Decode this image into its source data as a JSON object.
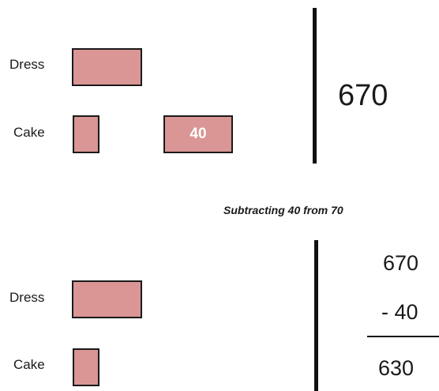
{
  "top": {
    "dress_label": "Dress",
    "cake_label": "Cake",
    "block_value": "40",
    "total": "670"
  },
  "caption": "Subtracting 40 from 70",
  "bottom": {
    "dress_label": "Dress",
    "cake_label": "Cake",
    "minuend": "670",
    "subtrahend": "- 40",
    "result": "630"
  },
  "colors": {
    "bar_fill": "#d99694",
    "bar_border": "#1a1a1a",
    "divider": "#111111"
  }
}
